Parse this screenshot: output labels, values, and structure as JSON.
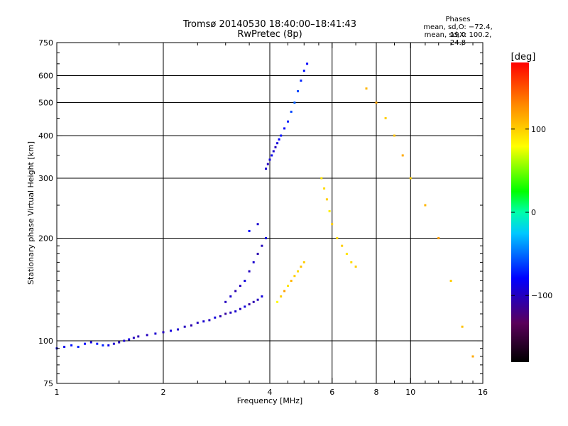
{
  "chart_data": {
    "type": "scatter",
    "title": "Tromsø 20140530 18:40:00–18:41:43",
    "subtitle": "RwPretec (8p)",
    "stats": {
      "heading": "Phases",
      "line1": "mean, sd,O: −72.4, 19.0",
      "line2": "mean, sd,X: 100.2, 24.8"
    },
    "xlabel": "Frequency [MHz]",
    "ylabel": "Stationary phase Virtual Height [km]",
    "x_scale": "log",
    "y_scale": "log",
    "xlim": [
      1,
      16
    ],
    "ylim": [
      75,
      750
    ],
    "x_ticks": [
      1,
      2,
      4,
      6,
      8,
      10,
      16
    ],
    "x_tick_labels": [
      "1",
      "2",
      "4",
      "6",
      "8",
      "10",
      "16"
    ],
    "y_ticks": [
      75,
      100,
      200,
      300,
      400,
      500,
      600,
      750
    ],
    "y_tick_labels": [
      "75",
      "100",
      "200",
      "300",
      "400",
      "500",
      "600",
      "750"
    ],
    "grid": true,
    "colorbar": {
      "label": "[deg]",
      "range": [
        -180,
        180
      ],
      "ticks": [
        100,
        0,
        -100
      ],
      "tick_labels": [
        "100",
        "0",
        "−100"
      ]
    },
    "series": [
      {
        "values": [
          [
            1.0,
            95,
            -80
          ],
          [
            1.05,
            96,
            -85
          ],
          [
            1.1,
            97,
            -75
          ],
          [
            1.15,
            96,
            -70
          ],
          [
            1.2,
            98,
            -80
          ],
          [
            1.25,
            99,
            -90
          ],
          [
            1.3,
            98,
            -75
          ],
          [
            1.35,
            97,
            -70
          ],
          [
            1.4,
            97,
            -85
          ],
          [
            1.45,
            98,
            -95
          ],
          [
            1.5,
            99,
            -100
          ],
          [
            1.55,
            100,
            -95
          ],
          [
            1.6,
            101,
            -90
          ],
          [
            1.65,
            102,
            -100
          ],
          [
            1.7,
            103,
            -105
          ],
          [
            1.8,
            104,
            -100
          ],
          [
            1.9,
            105,
            -95
          ],
          [
            2.0,
            106,
            -100
          ],
          [
            2.1,
            107,
            -90
          ],
          [
            2.2,
            108,
            -95
          ],
          [
            2.3,
            110,
            -100
          ],
          [
            2.4,
            111,
            -105
          ],
          [
            2.5,
            113,
            -100
          ],
          [
            2.6,
            114,
            -95
          ],
          [
            2.7,
            115,
            -100
          ],
          [
            2.8,
            117,
            -90
          ],
          [
            2.9,
            118,
            -105
          ],
          [
            3.0,
            120,
            -110
          ],
          [
            3.1,
            121,
            -100
          ],
          [
            3.2,
            122,
            -95
          ],
          [
            3.3,
            124,
            -100
          ],
          [
            3.4,
            126,
            -90
          ],
          [
            3.5,
            128,
            -110
          ],
          [
            3.6,
            130,
            -105
          ],
          [
            3.7,
            132,
            -100
          ],
          [
            3.8,
            135,
            -90
          ]
        ]
      },
      {
        "values": [
          [
            3.0,
            130,
            -100
          ],
          [
            3.1,
            135,
            -95
          ],
          [
            3.2,
            140,
            -105
          ],
          [
            3.3,
            145,
            -100
          ],
          [
            3.4,
            150,
            -90
          ],
          [
            3.5,
            160,
            -100
          ],
          [
            3.6,
            170,
            -95
          ],
          [
            3.7,
            180,
            -105
          ],
          [
            3.8,
            190,
            -100
          ],
          [
            3.9,
            200,
            -90
          ],
          [
            3.5,
            210,
            -80
          ],
          [
            3.7,
            220,
            -95
          ]
        ]
      },
      {
        "values": [
          [
            3.9,
            320,
            -95
          ],
          [
            3.95,
            330,
            -100
          ],
          [
            4.0,
            340,
            -90
          ],
          [
            4.05,
            350,
            -85
          ],
          [
            4.1,
            360,
            -95
          ],
          [
            4.15,
            370,
            -100
          ],
          [
            4.2,
            380,
            -90
          ],
          [
            4.25,
            390,
            -80
          ],
          [
            4.3,
            400,
            -75
          ],
          [
            4.4,
            420,
            -80
          ],
          [
            4.5,
            440,
            -70
          ],
          [
            4.6,
            470,
            -60
          ],
          [
            4.7,
            500,
            -55
          ],
          [
            4.8,
            540,
            -60
          ],
          [
            4.9,
            580,
            -70
          ],
          [
            5.0,
            620,
            -75
          ],
          [
            5.1,
            650,
            -80
          ]
        ]
      },
      {
        "values": [
          [
            4.2,
            130,
            80
          ],
          [
            4.3,
            135,
            100
          ],
          [
            4.4,
            140,
            120
          ],
          [
            4.5,
            145,
            90
          ],
          [
            4.6,
            150,
            110
          ],
          [
            4.7,
            155,
            100
          ],
          [
            4.8,
            160,
            95
          ],
          [
            4.9,
            165,
            105
          ],
          [
            5.0,
            170,
            100
          ]
        ]
      },
      {
        "values": [
          [
            5.6,
            300,
            90
          ],
          [
            5.7,
            280,
            95
          ],
          [
            5.8,
            260,
            100
          ],
          [
            5.9,
            240,
            85
          ],
          [
            6.0,
            220,
            100
          ],
          [
            6.2,
            200,
            95
          ],
          [
            6.4,
            190,
            100
          ],
          [
            6.6,
            180,
            90
          ],
          [
            6.8,
            170,
            95
          ],
          [
            7.0,
            165,
            100
          ]
        ]
      },
      {
        "values": [
          [
            7.5,
            550,
            110
          ],
          [
            8.0,
            500,
            120
          ],
          [
            8.5,
            450,
            100
          ],
          [
            9.0,
            400,
            105
          ],
          [
            9.5,
            350,
            115
          ],
          [
            10.0,
            300,
            100
          ],
          [
            11.0,
            250,
            110
          ],
          [
            12.0,
            200,
            120
          ],
          [
            13.0,
            150,
            100
          ],
          [
            14.0,
            110,
            105
          ],
          [
            15.0,
            90,
            115
          ]
        ]
      }
    ]
  }
}
